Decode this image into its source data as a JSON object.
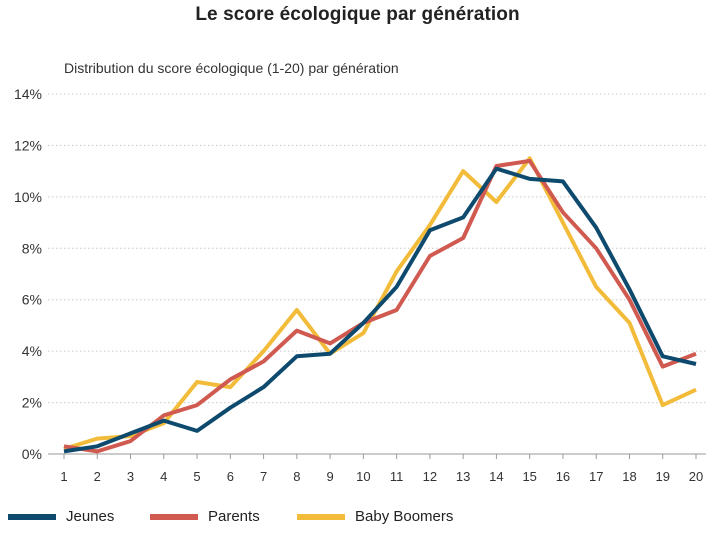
{
  "chart_data": {
    "type": "line",
    "title": "Le score écologique par génération",
    "subtitle": "Distribution du score écologique (1-20) par génération",
    "xlabel": "",
    "ylabel": "",
    "x": [
      1,
      2,
      3,
      4,
      5,
      6,
      7,
      8,
      9,
      10,
      11,
      12,
      13,
      14,
      15,
      16,
      17,
      18,
      19,
      20
    ],
    "y_ticks": [
      "0%",
      "2%",
      "4%",
      "6%",
      "8%",
      "10%",
      "12%",
      "14%"
    ],
    "ylim": [
      0,
      14
    ],
    "grid": "horizontal dotted",
    "legend_position": "bottom",
    "series": [
      {
        "name": "Jeunes",
        "color": "#0e4a6e",
        "values": [
          0.1,
          0.3,
          0.8,
          1.3,
          0.9,
          1.8,
          2.6,
          3.8,
          3.9,
          5.1,
          6.5,
          8.7,
          9.2,
          11.1,
          10.7,
          10.6,
          8.8,
          6.4,
          3.8,
          3.5
        ]
      },
      {
        "name": "Parents",
        "color": "#d05a50",
        "values": [
          0.3,
          0.1,
          0.5,
          1.5,
          1.9,
          2.9,
          3.6,
          4.8,
          4.3,
          5.1,
          5.6,
          7.7,
          8.4,
          11.2,
          11.4,
          9.4,
          8.0,
          6.0,
          3.4,
          3.9
        ]
      },
      {
        "name": "Baby Boomers",
        "color": "#f2bc3a",
        "values": [
          0.2,
          0.6,
          0.7,
          1.2,
          2.8,
          2.6,
          4.0,
          5.6,
          3.9,
          4.7,
          7.1,
          8.9,
          11.0,
          9.8,
          11.5,
          9.0,
          6.5,
          5.1,
          1.9,
          2.5
        ]
      }
    ]
  }
}
